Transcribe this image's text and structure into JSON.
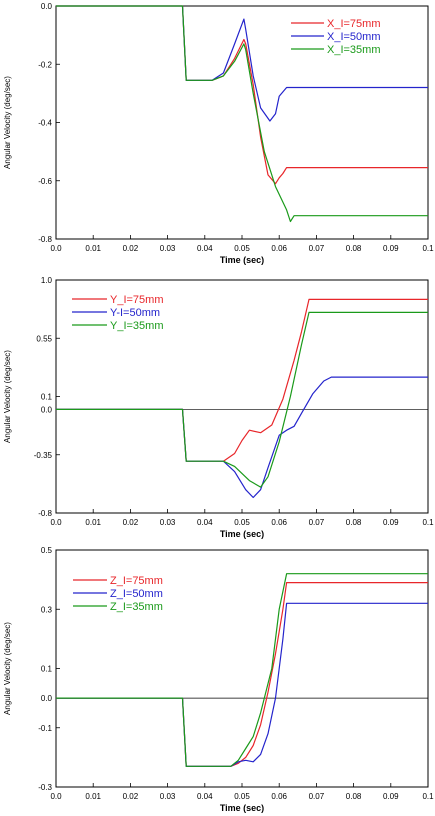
{
  "chart_data": [
    {
      "type": "line",
      "xlabel": "Time (sec)",
      "ylabel": "Angular Velocity (deg/sec)",
      "xlim": [
        0.0,
        0.1
      ],
      "ylim": [
        -0.8,
        0.0
      ],
      "xticks": [
        "0.0",
        "0.01",
        "0.02",
        "0.03",
        "0.04",
        "0.05",
        "0.06",
        "0.07",
        "0.08",
        "0.09",
        "0.1"
      ],
      "yticks": [
        {
          "value": 0.0,
          "label": "0.0"
        },
        {
          "value": -0.2,
          "label": "-0.2"
        },
        {
          "value": -0.4,
          "label": "-0.4"
        },
        {
          "value": -0.6,
          "label": "-0.6"
        },
        {
          "value": -0.8,
          "label": "-0.8"
        }
      ],
      "legend_position": "top-right",
      "series": [
        {
          "name": "X_I=75mm",
          "color": "#e8262a",
          "x": [
            0.0,
            0.034,
            0.035,
            0.042,
            0.045,
            0.048,
            0.0505,
            0.051,
            0.053,
            0.055,
            0.057,
            0.059,
            0.06,
            0.061,
            0.062,
            0.1
          ],
          "y": [
            0.0,
            0.0,
            -0.255,
            -0.255,
            -0.24,
            -0.18,
            -0.115,
            -0.13,
            -0.27,
            -0.45,
            -0.58,
            -0.61,
            -0.59,
            -0.575,
            -0.555,
            -0.555
          ]
        },
        {
          "name": "X_I=50mm",
          "color": "#2424cc",
          "x": [
            0.0,
            0.034,
            0.035,
            0.042,
            0.045,
            0.048,
            0.0505,
            0.051,
            0.053,
            0.055,
            0.0575,
            0.059,
            0.06,
            0.062,
            0.1
          ],
          "y": [
            0.0,
            0.0,
            -0.255,
            -0.255,
            -0.23,
            -0.13,
            -0.045,
            -0.08,
            -0.24,
            -0.35,
            -0.395,
            -0.37,
            -0.31,
            -0.28,
            -0.28
          ]
        },
        {
          "name": "X_I=35mm",
          "color": "#1a9a1a",
          "x": [
            0.0,
            0.034,
            0.035,
            0.042,
            0.045,
            0.048,
            0.0505,
            0.051,
            0.053,
            0.056,
            0.059,
            0.062,
            0.063,
            0.064,
            0.1
          ],
          "y": [
            0.0,
            0.0,
            -0.255,
            -0.255,
            -0.24,
            -0.19,
            -0.13,
            -0.15,
            -0.3,
            -0.5,
            -0.62,
            -0.7,
            -0.74,
            -0.72,
            -0.72
          ]
        }
      ]
    },
    {
      "type": "line",
      "xlabel": "Time (sec)",
      "ylabel": "Angular Velocity (deg/sec)",
      "xlim": [
        0.0,
        0.1
      ],
      "ylim": [
        -0.8,
        1.0
      ],
      "xticks": [
        "0.0",
        "0.01",
        "0.02",
        "0.03",
        "0.04",
        "0.05",
        "0.06",
        "0.07",
        "0.08",
        "0.09",
        "0.1"
      ],
      "yticks": [
        {
          "value": 1.0,
          "label": "1.0"
        },
        {
          "value": 0.55,
          "label": "0.55"
        },
        {
          "value": 0.1,
          "label": "0.1"
        },
        {
          "value": 0.0,
          "label": "0.0"
        },
        {
          "value": -0.35,
          "label": "-0.35"
        },
        {
          "value": -0.8,
          "label": "-0.8"
        }
      ],
      "legend_position": "top-left",
      "series": [
        {
          "name": "Y_I=75mm",
          "color": "#e8262a",
          "x": [
            0.0,
            0.034,
            0.035,
            0.045,
            0.048,
            0.05,
            0.052,
            0.055,
            0.058,
            0.061,
            0.064,
            0.066,
            0.068,
            0.1
          ],
          "y": [
            0.0,
            0.0,
            -0.4,
            -0.4,
            -0.34,
            -0.24,
            -0.16,
            -0.18,
            -0.12,
            0.08,
            0.38,
            0.6,
            0.85,
            0.85
          ]
        },
        {
          "name": "Y-I=50mm",
          "color": "#2424cc",
          "x": [
            0.0,
            0.034,
            0.035,
            0.045,
            0.048,
            0.051,
            0.053,
            0.055,
            0.057,
            0.06,
            0.062,
            0.064,
            0.066,
            0.069,
            0.072,
            0.074,
            0.1
          ],
          "y": [
            0.0,
            0.0,
            -0.4,
            -0.4,
            -0.48,
            -0.62,
            -0.68,
            -0.62,
            -0.45,
            -0.2,
            -0.16,
            -0.13,
            -0.03,
            0.12,
            0.22,
            0.25,
            0.25
          ]
        },
        {
          "name": "Y_I=35mm",
          "color": "#1a9a1a",
          "x": [
            0.0,
            0.034,
            0.035,
            0.045,
            0.048,
            0.052,
            0.055,
            0.057,
            0.06,
            0.063,
            0.066,
            0.068,
            0.1
          ],
          "y": [
            0.0,
            0.0,
            -0.4,
            -0.4,
            -0.44,
            -0.55,
            -0.6,
            -0.52,
            -0.25,
            0.1,
            0.5,
            0.75,
            0.75
          ]
        }
      ]
    },
    {
      "type": "line",
      "xlabel": "Time (sec)",
      "ylabel": "Angular Velocity (deg/sec)",
      "xlim": [
        0.0,
        0.1
      ],
      "ylim": [
        -0.3,
        0.5
      ],
      "xticks": [
        "0.0",
        "0.01",
        "0.02",
        "0.03",
        "0.04",
        "0.05",
        "0.06",
        "0.07",
        "0.08",
        "0.09",
        "0.1"
      ],
      "yticks": [
        {
          "value": 0.5,
          "label": "0.5"
        },
        {
          "value": 0.3,
          "label": "0.3"
        },
        {
          "value": 0.1,
          "label": "0.1"
        },
        {
          "value": 0.0,
          "label": "0.0"
        },
        {
          "value": -0.1,
          "label": "-0.1"
        },
        {
          "value": -0.3,
          "label": "-0.3"
        }
      ],
      "legend_position": "top-left",
      "series": [
        {
          "name": "Z_I=75mm",
          "color": "#e8262a",
          "x": [
            0.0,
            0.034,
            0.035,
            0.047,
            0.049,
            0.051,
            0.053,
            0.055,
            0.057,
            0.059,
            0.061,
            0.062,
            0.1
          ],
          "y": [
            0.0,
            0.0,
            -0.23,
            -0.23,
            -0.22,
            -0.2,
            -0.16,
            -0.09,
            0.02,
            0.15,
            0.3,
            0.39,
            0.39
          ]
        },
        {
          "name": "Z_I=50mm",
          "color": "#2424cc",
          "x": [
            0.0,
            0.034,
            0.035,
            0.047,
            0.049,
            0.051,
            0.053,
            0.055,
            0.057,
            0.059,
            0.061,
            0.062,
            0.1
          ],
          "y": [
            0.0,
            0.0,
            -0.23,
            -0.23,
            -0.215,
            -0.21,
            -0.215,
            -0.19,
            -0.12,
            0.0,
            0.2,
            0.32,
            0.32
          ]
        },
        {
          "name": "Z_I=35mm",
          "color": "#1a9a1a",
          "x": [
            0.0,
            0.034,
            0.035,
            0.047,
            0.049,
            0.051,
            0.053,
            0.055,
            0.058,
            0.06,
            0.062,
            0.1
          ],
          "y": [
            0.0,
            0.0,
            -0.23,
            -0.23,
            -0.21,
            -0.17,
            -0.13,
            -0.05,
            0.1,
            0.3,
            0.42,
            0.42
          ]
        }
      ]
    }
  ]
}
